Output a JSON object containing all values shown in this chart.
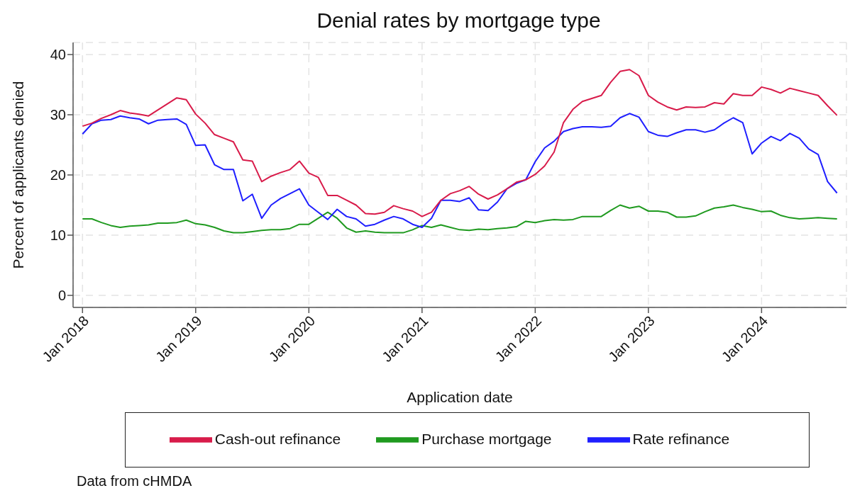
{
  "chart_data": {
    "type": "line",
    "title": "Denial rates by mortgage type",
    "xlabel": "Application date",
    "ylabel": "Percent of applicants denied",
    "x": [
      "2018-01",
      "2018-02",
      "2018-03",
      "2018-04",
      "2018-05",
      "2018-06",
      "2018-07",
      "2018-08",
      "2018-09",
      "2018-10",
      "2018-11",
      "2018-12",
      "2019-01",
      "2019-02",
      "2019-03",
      "2019-04",
      "2019-05",
      "2019-06",
      "2019-07",
      "2019-08",
      "2019-09",
      "2019-10",
      "2019-11",
      "2019-12",
      "2020-01",
      "2020-02",
      "2020-03",
      "2020-04",
      "2020-05",
      "2020-06",
      "2020-07",
      "2020-08",
      "2020-09",
      "2020-10",
      "2020-11",
      "2020-12",
      "2021-01",
      "2021-02",
      "2021-03",
      "2021-04",
      "2021-05",
      "2021-06",
      "2021-07",
      "2021-08",
      "2021-09",
      "2021-10",
      "2021-11",
      "2021-12",
      "2022-01",
      "2022-02",
      "2022-03",
      "2022-04",
      "2022-05",
      "2022-06",
      "2022-07",
      "2022-08",
      "2022-09",
      "2022-10",
      "2022-11",
      "2022-12",
      "2023-01",
      "2023-02",
      "2023-03",
      "2023-04",
      "2023-05",
      "2023-06",
      "2023-07",
      "2023-08",
      "2023-09",
      "2023-10",
      "2023-11",
      "2023-12",
      "2024-01",
      "2024-02",
      "2024-03",
      "2024-04",
      "2024-05",
      "2024-06",
      "2024-07",
      "2024-08",
      "2024-09"
    ],
    "series": [
      {
        "name": "Purchase mortgage",
        "color": "#1f9a1f",
        "values": [
          12.7,
          12.7,
          12.1,
          11.6,
          11.3,
          11.5,
          11.6,
          11.7,
          12.0,
          12.0,
          12.1,
          12.5,
          11.9,
          11.7,
          11.3,
          10.7,
          10.4,
          10.4,
          10.6,
          10.8,
          10.9,
          10.9,
          11.1,
          11.8,
          11.8,
          12.8,
          13.8,
          12.8,
          11.2,
          10.5,
          10.7,
          10.5,
          10.4,
          10.4,
          10.4,
          10.9,
          11.6,
          11.3,
          11.7,
          11.3,
          10.9,
          10.8,
          11.0,
          10.9,
          11.1,
          11.2,
          11.4,
          12.3,
          12.1,
          12.4,
          12.6,
          12.5,
          12.6,
          13.1,
          13.1,
          13.1,
          14.1,
          15.0,
          14.5,
          14.8,
          14.0,
          14.0,
          13.8,
          13.0,
          13.0,
          13.2,
          13.9,
          14.5,
          14.7,
          15.0,
          14.6,
          14.3,
          13.9,
          14.0,
          13.3,
          12.9,
          12.7,
          12.8,
          12.9,
          12.8,
          12.7
        ]
      },
      {
        "name": "Rate refinance",
        "color": "#1f1fff",
        "values": [
          26.8,
          28.5,
          29.1,
          29.2,
          29.8,
          29.5,
          29.3,
          28.5,
          29.1,
          29.2,
          29.3,
          28.4,
          24.9,
          25.0,
          21.7,
          20.9,
          20.9,
          15.7,
          16.8,
          12.8,
          15.0,
          16.1,
          16.9,
          17.7,
          15.0,
          13.8,
          12.6,
          14.3,
          13.1,
          12.7,
          11.5,
          11.8,
          12.5,
          13.1,
          12.7,
          11.8,
          11.3,
          12.8,
          15.8,
          15.8,
          15.6,
          16.2,
          14.2,
          14.1,
          15.5,
          17.7,
          18.6,
          19.2,
          22.2,
          24.5,
          25.6,
          27.2,
          27.7,
          28.0,
          28.0,
          27.9,
          28.1,
          29.5,
          30.2,
          29.6,
          27.2,
          26.6,
          26.4,
          27.0,
          27.5,
          27.5,
          27.1,
          27.5,
          28.6,
          29.5,
          28.7,
          23.5,
          25.3,
          26.4,
          25.7,
          26.9,
          26.1,
          24.3,
          23.4,
          18.9,
          17.0
        ]
      },
      {
        "name": "Cash-out refinance",
        "color": "#d81b4a",
        "values": [
          28.1,
          28.6,
          29.4,
          30.0,
          30.7,
          30.3,
          30.1,
          29.8,
          30.8,
          31.8,
          32.8,
          32.5,
          30.1,
          28.6,
          26.7,
          26.1,
          25.5,
          22.5,
          22.3,
          18.9,
          19.8,
          20.4,
          20.9,
          22.3,
          20.3,
          19.6,
          16.6,
          16.6,
          15.8,
          15.0,
          13.6,
          13.5,
          13.8,
          14.9,
          14.4,
          14.0,
          13.1,
          13.8,
          15.8,
          16.9,
          17.4,
          18.1,
          16.8,
          16.0,
          16.7,
          17.7,
          18.8,
          19.2,
          20.1,
          21.5,
          23.8,
          28.7,
          30.9,
          32.2,
          32.7,
          33.2,
          35.4,
          37.2,
          37.5,
          36.5,
          33.2,
          32.1,
          31.3,
          30.8,
          31.3,
          31.2,
          31.3,
          32.0,
          31.8,
          33.5,
          33.2,
          33.2,
          34.6,
          34.2,
          33.6,
          34.4,
          34.0,
          33.6,
          33.2,
          31.5,
          29.9
        ]
      }
    ],
    "xlim": [
      "2017-12",
      "2024-10"
    ],
    "xticks": [
      {
        "value": "2018-01",
        "label": "Jan 2018"
      },
      {
        "value": "2019-01",
        "label": "Jan 2019"
      },
      {
        "value": "2020-01",
        "label": "Jan 2020"
      },
      {
        "value": "2021-01",
        "label": "Jan 2021"
      },
      {
        "value": "2022-01",
        "label": "Jan 2022"
      },
      {
        "value": "2023-01",
        "label": "Jan 2023"
      },
      {
        "value": "2024-01",
        "label": "Jan 2024"
      }
    ],
    "ylim": [
      -2,
      42
    ],
    "yticks": [
      0,
      10,
      20,
      30,
      40
    ],
    "grid": true,
    "legend": "bottom",
    "line_style": "solid",
    "annotations": [
      "Data from cHMDA"
    ]
  }
}
